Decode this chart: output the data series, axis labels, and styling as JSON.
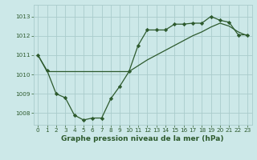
{
  "series1_x": [
    0,
    1,
    2,
    3,
    4,
    5,
    6,
    7,
    8,
    9,
    10,
    11,
    12,
    13,
    14,
    15,
    16,
    17,
    18,
    19,
    20,
    21,
    22,
    23
  ],
  "series1_y": [
    1011.0,
    1010.2,
    1009.0,
    1008.8,
    1007.9,
    1007.65,
    1007.75,
    1007.75,
    1008.75,
    1009.4,
    1010.15,
    1011.5,
    1012.3,
    1012.3,
    1012.3,
    1012.6,
    1012.6,
    1012.65,
    1012.65,
    1013.0,
    1012.8,
    1012.7,
    1012.05,
    1012.05
  ],
  "series2_x": [
    0,
    1,
    2,
    3,
    4,
    5,
    6,
    7,
    8,
    9,
    10,
    11,
    12,
    13,
    14,
    15,
    16,
    17,
    18,
    19,
    20,
    21,
    22,
    23
  ],
  "series2_y": [
    1011.0,
    1010.15,
    1010.15,
    1010.15,
    1010.15,
    1010.15,
    1010.15,
    1010.15,
    1010.15,
    1010.15,
    1010.15,
    1010.45,
    1010.75,
    1011.0,
    1011.25,
    1011.5,
    1011.75,
    1012.0,
    1012.2,
    1012.45,
    1012.65,
    1012.5,
    1012.2,
    1012.0
  ],
  "line_color": "#2d5a2d",
  "bg_color": "#cce8e8",
  "grid_color": "#aacccc",
  "xlabel": "Graphe pression niveau de la mer (hPa)",
  "xlabel_color": "#2d5a2d",
  "ylabel_ticks": [
    1008,
    1009,
    1010,
    1011,
    1012,
    1013
  ],
  "xlim": [
    -0.5,
    23.5
  ],
  "ylim": [
    1007.4,
    1013.6
  ],
  "xticks": [
    0,
    1,
    2,
    3,
    4,
    5,
    6,
    7,
    8,
    9,
    10,
    11,
    12,
    13,
    14,
    15,
    16,
    17,
    18,
    19,
    20,
    21,
    22,
    23
  ]
}
